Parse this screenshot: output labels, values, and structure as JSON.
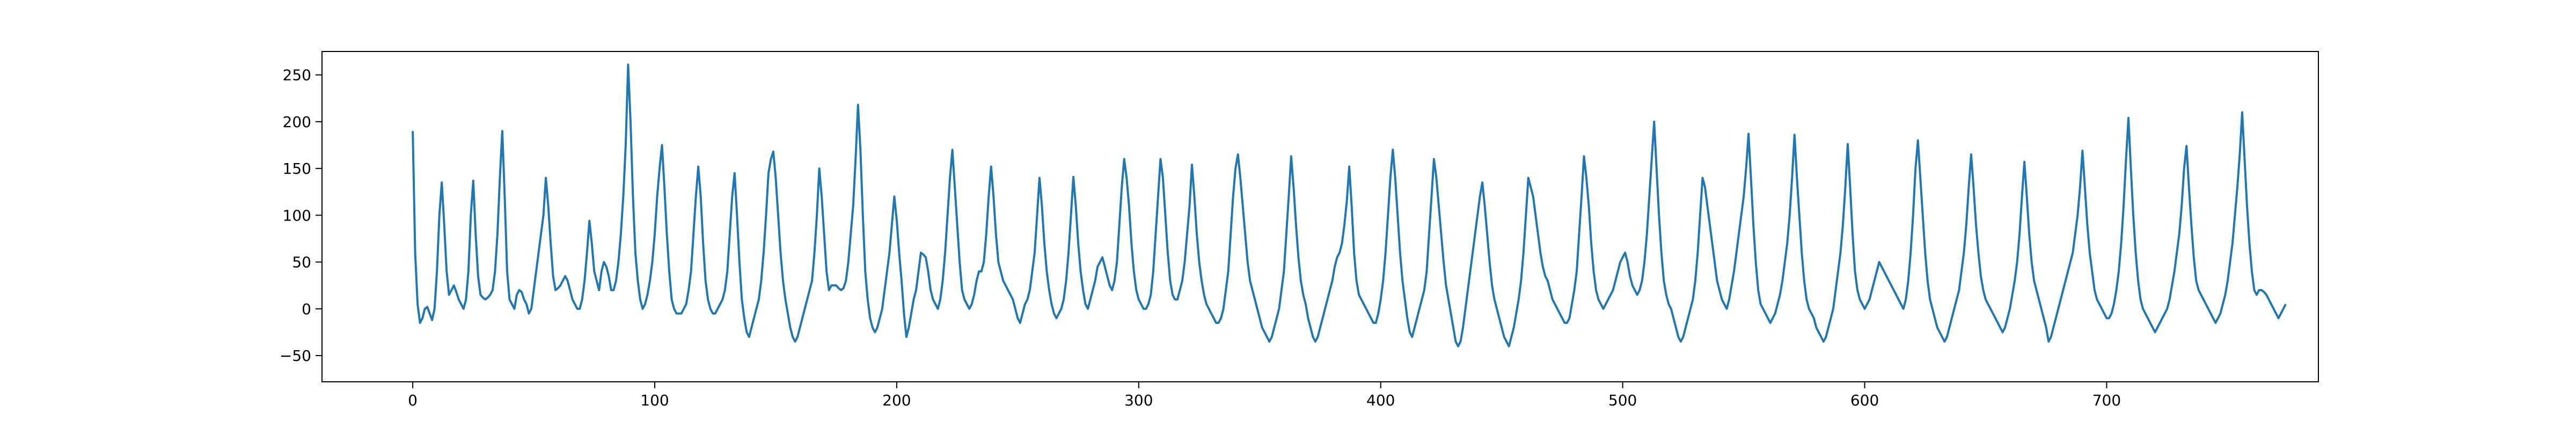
{
  "chart_data": {
    "type": "line",
    "title": "",
    "xlabel": "",
    "ylabel": "",
    "xlim": [
      -37.5,
      787.5
    ],
    "ylim": [
      -78,
      275
    ],
    "xticks": [
      0,
      100,
      200,
      300,
      400,
      500,
      600,
      700
    ],
    "yticks": [
      -50,
      0,
      50,
      100,
      150,
      200,
      250
    ],
    "grid": false,
    "legend": "none",
    "series": [
      {
        "color": "#1f77b4",
        "x_start": 0,
        "x_step": 1,
        "values": [
          190,
          60,
          5,
          -15,
          -10,
          0,
          2,
          -5,
          -12,
          0,
          40,
          100,
          135,
          90,
          40,
          15,
          20,
          25,
          18,
          10,
          5,
          0,
          10,
          40,
          100,
          137,
          80,
          35,
          15,
          12,
          10,
          12,
          15,
          20,
          40,
          80,
          140,
          190,
          120,
          40,
          10,
          5,
          0,
          15,
          20,
          18,
          10,
          5,
          -5,
          0,
          20,
          40,
          60,
          80,
          100,
          140,
          110,
          70,
          35,
          20,
          22,
          25,
          30,
          35,
          30,
          20,
          10,
          5,
          0,
          0,
          10,
          30,
          60,
          94,
          70,
          40,
          30,
          20,
          40,
          50,
          45,
          35,
          20,
          20,
          30,
          50,
          80,
          120,
          175,
          261,
          200,
          120,
          60,
          30,
          10,
          0,
          5,
          15,
          30,
          50,
          80,
          120,
          150,
          175,
          130,
          80,
          40,
          10,
          0,
          -5,
          -5,
          -5,
          0,
          5,
          20,
          40,
          80,
          120,
          152,
          120,
          70,
          30,
          10,
          0,
          -5,
          -5,
          0,
          5,
          10,
          20,
          40,
          80,
          120,
          145,
          100,
          50,
          10,
          -10,
          -25,
          -30,
          -20,
          -10,
          0,
          10,
          30,
          60,
          100,
          145,
          160,
          168,
          140,
          100,
          60,
          30,
          10,
          -5,
          -20,
          -30,
          -35,
          -30,
          -20,
          -10,
          0,
          10,
          20,
          30,
          60,
          100,
          150,
          120,
          80,
          40,
          20,
          25,
          25,
          25,
          22,
          20,
          22,
          30,
          50,
          80,
          110,
          160,
          218,
          170,
          100,
          40,
          10,
          -10,
          -20,
          -25,
          -20,
          -10,
          0,
          20,
          40,
          60,
          90,
          120,
          95,
          60,
          30,
          -5,
          -30,
          -20,
          -5,
          10,
          20,
          40,
          60,
          58,
          55,
          40,
          20,
          10,
          5,
          0,
          10,
          30,
          60,
          100,
          140,
          170,
          130,
          90,
          50,
          20,
          10,
          5,
          0,
          5,
          15,
          30,
          40,
          40,
          50,
          80,
          120,
          152,
          120,
          80,
          50,
          40,
          30,
          25,
          20,
          15,
          10,
          0,
          -10,
          -15,
          -5,
          5,
          10,
          20,
          40,
          60,
          100,
          140,
          110,
          70,
          40,
          20,
          5,
          -5,
          -10,
          -5,
          0,
          10,
          30,
          60,
          100,
          141,
          110,
          70,
          40,
          20,
          5,
          0,
          10,
          20,
          30,
          45,
          50,
          55,
          45,
          35,
          25,
          20,
          30,
          50,
          90,
          130,
          160,
          140,
          110,
          70,
          40,
          20,
          10,
          5,
          0,
          0,
          5,
          15,
          40,
          80,
          120,
          160,
          140,
          100,
          60,
          30,
          15,
          10,
          10,
          20,
          30,
          50,
          80,
          110,
          154,
          120,
          80,
          50,
          30,
          15,
          5,
          0,
          -5,
          -10,
          -15,
          -15,
          -10,
          0,
          20,
          40,
          80,
          120,
          150,
          165,
          140,
          110,
          80,
          50,
          30,
          20,
          10,
          0,
          -10,
          -20,
          -25,
          -30,
          -35,
          -30,
          -20,
          -10,
          0,
          20,
          40,
          80,
          120,
          163,
          130,
          90,
          55,
          30,
          15,
          5,
          -10,
          -20,
          -30,
          -35,
          -30,
          -20,
          -10,
          0,
          10,
          20,
          30,
          45,
          55,
          60,
          70,
          90,
          115,
          152,
          110,
          60,
          30,
          15,
          10,
          5,
          0,
          -5,
          -10,
          -15,
          -15,
          -5,
          10,
          30,
          60,
          100,
          140,
          170,
          140,
          100,
          60,
          30,
          10,
          -10,
          -25,
          -30,
          -20,
          -10,
          0,
          10,
          20,
          40,
          80,
          120,
          160,
          140,
          110,
          80,
          50,
          25,
          10,
          -5,
          -20,
          -35,
          -40,
          -35,
          -20,
          0,
          20,
          40,
          60,
          80,
          100,
          120,
          135,
          110,
          80,
          50,
          25,
          10,
          0,
          -10,
          -20,
          -30,
          -35,
          -40,
          -30,
          -20,
          -5,
          10,
          30,
          60,
          100,
          140,
          130,
          120,
          100,
          80,
          60,
          45,
          35,
          30,
          20,
          10,
          5,
          0,
          -5,
          -10,
          -15,
          -15,
          -10,
          5,
          20,
          40,
          80,
          120,
          163,
          140,
          110,
          70,
          40,
          20,
          10,
          5,
          0,
          5,
          10,
          15,
          20,
          30,
          40,
          50,
          55,
          60,
          50,
          35,
          25,
          20,
          15,
          20,
          30,
          50,
          80,
          120,
          160,
          200,
          150,
          100,
          60,
          30,
          15,
          5,
          0,
          -10,
          -20,
          -30,
          -35,
          -30,
          -20,
          -10,
          0,
          10,
          30,
          60,
          100,
          140,
          130,
          110,
          90,
          70,
          50,
          30,
          20,
          10,
          5,
          0,
          10,
          25,
          40,
          60,
          80,
          100,
          120,
          150,
          187,
          140,
          90,
          50,
          20,
          5,
          0,
          -5,
          -10,
          -15,
          -10,
          -5,
          5,
          15,
          30,
          50,
          70,
          100,
          140,
          186,
          140,
          100,
          60,
          30,
          10,
          0,
          -5,
          -10,
          -20,
          -25,
          -30,
          -35,
          -30,
          -20,
          -10,
          0,
          20,
          40,
          60,
          90,
          130,
          176,
          130,
          80,
          40,
          20,
          10,
          5,
          0,
          5,
          10,
          20,
          30,
          40,
          50,
          45,
          40,
          35,
          30,
          25,
          20,
          15,
          10,
          5,
          0,
          10,
          30,
          60,
          100,
          150,
          180,
          140,
          100,
          60,
          30,
          10,
          0,
          -10,
          -20,
          -25,
          -30,
          -35,
          -30,
          -20,
          -10,
          0,
          10,
          20,
          40,
          60,
          90,
          130,
          165,
          130,
          90,
          60,
          35,
          20,
          10,
          5,
          0,
          -5,
          -10,
          -15,
          -20,
          -25,
          -20,
          -10,
          0,
          15,
          30,
          50,
          80,
          120,
          157,
          120,
          80,
          50,
          30,
          20,
          10,
          0,
          -10,
          -20,
          -35,
          -30,
          -20,
          -10,
          0,
          10,
          20,
          30,
          40,
          50,
          60,
          80,
          100,
          130,
          169,
          130,
          90,
          60,
          40,
          20,
          10,
          5,
          0,
          -5,
          -10,
          -10,
          -5,
          5,
          20,
          40,
          70,
          110,
          160,
          204,
          150,
          100,
          60,
          30,
          10,
          0,
          -5,
          -10,
          -15,
          -20,
          -25,
          -20,
          -15,
          -10,
          -5,
          0,
          10,
          25,
          40,
          60,
          80,
          110,
          150,
          174,
          130,
          90,
          55,
          30,
          20,
          15,
          10,
          5,
          0,
          -5,
          -10,
          -15,
          -10,
          -5,
          5,
          15,
          30,
          50,
          70,
          100,
          130,
          165,
          210,
          160,
          110,
          70,
          40,
          20,
          15,
          20,
          20,
          18,
          15,
          10,
          5,
          0,
          -5,
          -10,
          -5,
          0,
          5
        ]
      }
    ]
  }
}
